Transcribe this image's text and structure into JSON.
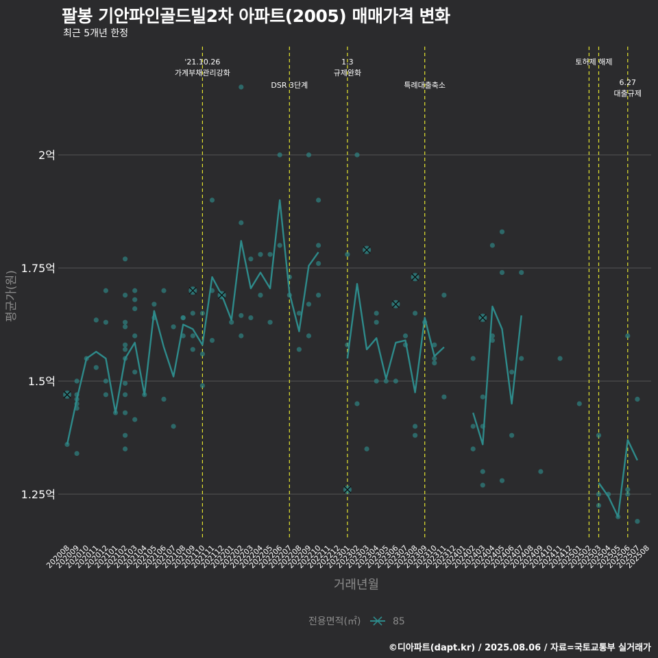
{
  "title": "팔봉 기안파인골드빌2차 아파트(2005) 매매가격 변화",
  "subtitle": "최근 5개년 한정",
  "caption": "©디아파트(dapt.kr) / 2025.08.06 / 자료=국토교통부 실거래가",
  "colors": {
    "background": "#2b2b2d",
    "series": "#2e8b8b",
    "event_line": "#e6e62e",
    "grid": "#555555",
    "text": "#ffffff",
    "axis_title": "#8c8c8c"
  },
  "chart_data": {
    "type": "line",
    "xlabel": "거래년월",
    "ylabel": "평균가(원)",
    "ylim": [
      1.15,
      2.38
    ],
    "y_unit": "억",
    "yticks": [
      1.25,
      1.5,
      1.75,
      2.0
    ],
    "ytick_labels": [
      "1.25억",
      "1.5억",
      "1.75억",
      "2억"
    ],
    "categories": [
      "202008",
      "202009",
      "202010",
      "202011",
      "202012",
      "202101",
      "202102",
      "202103",
      "202104",
      "202105",
      "202106",
      "202107",
      "202108",
      "202109",
      "202110",
      "202111",
      "202112",
      "202201",
      "202202",
      "202203",
      "202204",
      "202205",
      "202206",
      "202207",
      "202208",
      "202209",
      "202210",
      "202211",
      "202212",
      "202301",
      "202302",
      "202303",
      "202304",
      "202305",
      "202306",
      "202307",
      "202308",
      "202309",
      "202310",
      "202311",
      "202312",
      "202401",
      "202402",
      "202403",
      "202404",
      "202405",
      "202406",
      "202407",
      "202408",
      "202409",
      "202410",
      "202411",
      "202412",
      "202501",
      "202502",
      "202503",
      "202504",
      "202505",
      "202506",
      "202507",
      "202508"
    ],
    "legend": {
      "title": "전용면적(㎡)",
      "items": [
        "85"
      ],
      "position": "bottom"
    },
    "series": [
      {
        "name": "85",
        "average": [
          1.36,
          1.46,
          1.55,
          1.565,
          1.55,
          1.43,
          1.55,
          1.585,
          1.47,
          1.655,
          1.575,
          1.51,
          1.625,
          1.615,
          1.58,
          1.73,
          1.69,
          1.635,
          1.81,
          1.705,
          1.74,
          1.705,
          1.9,
          1.695,
          1.61,
          1.755,
          1.785,
          null,
          null,
          1.55,
          1.715,
          1.57,
          1.595,
          1.505,
          1.585,
          1.59,
          1.475,
          1.64,
          1.555,
          1.575,
          null,
          null,
          1.43,
          1.36,
          1.665,
          1.615,
          1.45,
          1.645,
          null,
          null,
          null,
          null,
          null,
          null,
          null,
          1.275,
          1.245,
          1.2,
          1.37,
          1.325,
          null
        ],
        "transactions": [
          [
            "202008",
            1.47
          ],
          [
            "202008",
            1.36
          ],
          [
            "202009",
            1.5
          ],
          [
            "202009",
            1.47
          ],
          [
            "202009",
            1.46
          ],
          [
            "202009",
            1.45
          ],
          [
            "202009",
            1.44
          ],
          [
            "202009",
            1.34
          ],
          [
            "202010",
            1.55
          ],
          [
            "202011",
            1.53
          ],
          [
            "202011",
            1.635
          ],
          [
            "202012",
            1.7
          ],
          [
            "202012",
            1.63
          ],
          [
            "202012",
            1.5
          ],
          [
            "202012",
            1.47
          ],
          [
            "202101",
            1.43
          ],
          [
            "202102",
            1.77
          ],
          [
            "202102",
            1.69
          ],
          [
            "202102",
            1.63
          ],
          [
            "202102",
            1.62
          ],
          [
            "202102",
            1.58
          ],
          [
            "202102",
            1.57
          ],
          [
            "202102",
            1.55
          ],
          [
            "202102",
            1.495
          ],
          [
            "202102",
            1.47
          ],
          [
            "202102",
            1.43
          ],
          [
            "202102",
            1.38
          ],
          [
            "202102",
            1.35
          ],
          [
            "202103",
            1.7
          ],
          [
            "202103",
            1.68
          ],
          [
            "202103",
            1.66
          ],
          [
            "202103",
            1.6
          ],
          [
            "202103",
            1.52
          ],
          [
            "202103",
            1.415
          ],
          [
            "202104",
            1.47
          ],
          [
            "202105",
            1.67
          ],
          [
            "202105",
            1.64
          ],
          [
            "202106",
            1.7
          ],
          [
            "202106",
            1.46
          ],
          [
            "202107",
            1.62
          ],
          [
            "202107",
            1.4
          ],
          [
            "202108",
            1.64
          ],
          [
            "202108",
            1.64
          ],
          [
            "202108",
            1.6
          ],
          [
            "202109",
            1.7
          ],
          [
            "202109",
            1.65
          ],
          [
            "202109",
            1.6
          ],
          [
            "202109",
            1.57
          ],
          [
            "202110",
            1.65
          ],
          [
            "202110",
            1.56
          ],
          [
            "202110",
            1.49
          ],
          [
            "202111",
            1.9
          ],
          [
            "202111",
            1.7
          ],
          [
            "202111",
            1.59
          ],
          [
            "202112",
            1.69
          ],
          [
            "202201",
            1.63
          ],
          [
            "202202",
            2.15
          ],
          [
            "202202",
            1.85
          ],
          [
            "202202",
            1.645
          ],
          [
            "202202",
            1.6
          ],
          [
            "202203",
            1.77
          ],
          [
            "202203",
            1.64
          ],
          [
            "202204",
            1.78
          ],
          [
            "202204",
            1.69
          ],
          [
            "202205",
            1.78
          ],
          [
            "202205",
            1.63
          ],
          [
            "202206",
            2.0
          ],
          [
            "202206",
            1.8
          ],
          [
            "202207",
            1.73
          ],
          [
            "202207",
            1.69
          ],
          [
            "202208",
            1.65
          ],
          [
            "202208",
            1.57
          ],
          [
            "202209",
            2.0
          ],
          [
            "202209",
            1.67
          ],
          [
            "202209",
            1.6
          ],
          [
            "202210",
            1.9
          ],
          [
            "202210",
            1.8
          ],
          [
            "202210",
            1.76
          ],
          [
            "202210",
            1.69
          ],
          [
            "202301",
            1.78
          ],
          [
            "202301",
            1.58
          ],
          [
            "202301",
            1.26
          ],
          [
            "202302",
            2.0
          ],
          [
            "202302",
            1.45
          ],
          [
            "202303",
            1.79
          ],
          [
            "202303",
            1.35
          ],
          [
            "202304",
            1.65
          ],
          [
            "202304",
            1.63
          ],
          [
            "202304",
            1.5
          ],
          [
            "202305",
            1.5
          ],
          [
            "202306",
            1.67
          ],
          [
            "202306",
            1.5
          ],
          [
            "202307",
            1.6
          ],
          [
            "202307",
            1.58
          ],
          [
            "202308",
            1.73
          ],
          [
            "202308",
            1.65
          ],
          [
            "202308",
            1.4
          ],
          [
            "202308",
            1.38
          ],
          [
            "202309",
            1.63
          ],
          [
            "202310",
            1.58
          ],
          [
            "202310",
            1.55
          ],
          [
            "202310",
            1.54
          ],
          [
            "202311",
            1.69
          ],
          [
            "202311",
            1.465
          ],
          [
            "202402",
            1.55
          ],
          [
            "202402",
            1.4
          ],
          [
            "202402",
            1.35
          ],
          [
            "202403",
            1.64
          ],
          [
            "202403",
            1.465
          ],
          [
            "202403",
            1.4
          ],
          [
            "202403",
            1.3
          ],
          [
            "202403",
            1.27
          ],
          [
            "202404",
            1.8
          ],
          [
            "202404",
            1.6
          ],
          [
            "202404",
            1.59
          ],
          [
            "202405",
            1.83
          ],
          [
            "202405",
            1.74
          ],
          [
            "202405",
            1.28
          ],
          [
            "202406",
            1.52
          ],
          [
            "202406",
            1.38
          ],
          [
            "202407",
            1.74
          ],
          [
            "202407",
            1.55
          ],
          [
            "202409",
            1.3
          ],
          [
            "202411",
            1.55
          ],
          [
            "202501",
            1.45
          ],
          [
            "202503",
            1.38
          ],
          [
            "202503",
            1.25
          ],
          [
            "202503",
            1.225
          ],
          [
            "202504",
            1.25
          ],
          [
            "202505",
            1.2
          ],
          [
            "202506",
            1.6
          ],
          [
            "202506",
            1.26
          ],
          [
            "202506",
            1.25
          ],
          [
            "202507",
            1.46
          ],
          [
            "202507",
            1.19
          ]
        ],
        "highlighted": [
          [
            "202008",
            1.47
          ],
          [
            "202109",
            1.7
          ],
          [
            "202112",
            1.69
          ],
          [
            "202301",
            1.26
          ],
          [
            "202303",
            1.79
          ],
          [
            "202306",
            1.67
          ],
          [
            "202308",
            1.73
          ],
          [
            "202403",
            1.64
          ]
        ]
      }
    ],
    "events": [
      {
        "date": "202110",
        "label": [
          "'21.10.26",
          "가계부채관리강화"
        ],
        "row": 0
      },
      {
        "date": "202207",
        "label": [
          "DSR 3단계"
        ],
        "row": 1
      },
      {
        "date": "202301",
        "label": [
          "1.3",
          "규제완화"
        ],
        "row": 0
      },
      {
        "date": "202309",
        "label": [
          "특례대출축소"
        ],
        "row": 1
      },
      {
        "date": "202502",
        "label": [
          "토허제 해제"
        ],
        "row": 0,
        "anchor": "202503"
      },
      {
        "date": "202503",
        "label": [],
        "row": 0
      },
      {
        "date": "202506",
        "label": [
          "6.27",
          "대출규제"
        ],
        "row": 2
      }
    ]
  }
}
